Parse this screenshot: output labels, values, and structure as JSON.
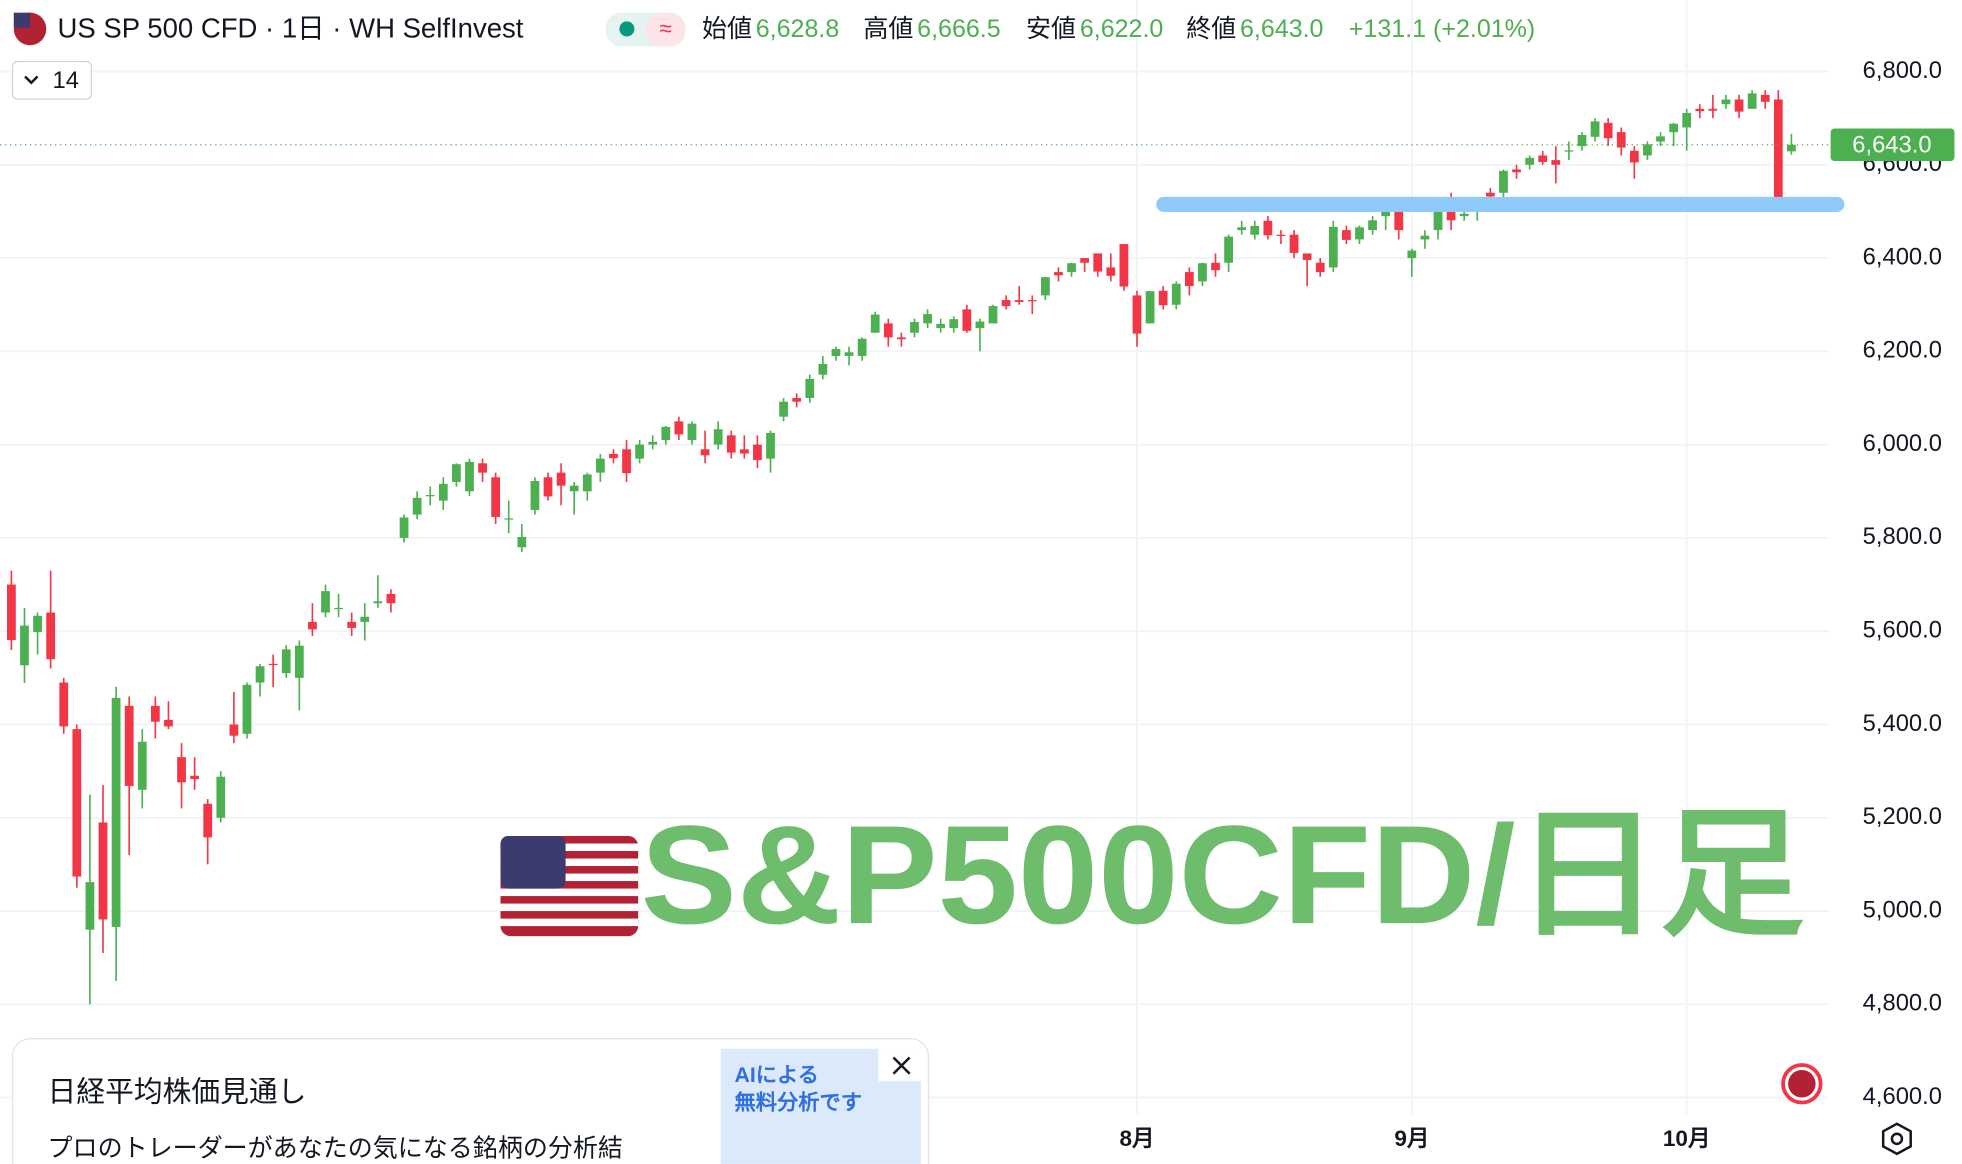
{
  "header": {
    "title": "US SP 500 CFD · 1日 · WH SelfInvest",
    "interval_box": "14",
    "open_label": "始値",
    "open": "6,628.8",
    "high_label": "高値",
    "high": "6,666.5",
    "low_label": "安値",
    "low": "6,622.0",
    "close_label": "終値",
    "close": "6,643.0",
    "change": "+131.1 (+2.01%)"
  },
  "overlay_title": "S&P500CFD/日足",
  "ad": {
    "title": "日経平均株価見通し",
    "text": "プロのトレーダーがあなたの気になる銘柄の分析結",
    "image_lines": [
      "AIによる",
      "無料分析です"
    ]
  },
  "chart_data": {
    "type": "candlestick",
    "up_color": "#4caf50",
    "down_color": "#f23645",
    "grid": true,
    "ylim": [
      4458,
      6953
    ],
    "yticks": [
      {
        "value": 4600,
        "label": "4,600.0"
      },
      {
        "value": 4800,
        "label": "4,800.0"
      },
      {
        "value": 5000,
        "label": "5,000.0"
      },
      {
        "value": 5200,
        "label": "5,200.0"
      },
      {
        "value": 5400,
        "label": "5,400.0"
      },
      {
        "value": 5600,
        "label": "5,600.0"
      },
      {
        "value": 5800,
        "label": "5,800.0"
      },
      {
        "value": 6000,
        "label": "6,000.0"
      },
      {
        "value": 6200,
        "label": "6,200.0"
      },
      {
        "value": 6400,
        "label": "6,400.0"
      },
      {
        "value": 6600,
        "label": "6,600.0"
      },
      {
        "value": 6800,
        "label": "6,800.0"
      }
    ],
    "last_price_label": "6,643.0",
    "annotation_line": {
      "value": 6515,
      "color": "#90caf9"
    },
    "categories": [
      null,
      null,
      null,
      null,
      null,
      null,
      null,
      null,
      null,
      null,
      null,
      null,
      null,
      null,
      null,
      null,
      null,
      null,
      null,
      null,
      null,
      null,
      null,
      null,
      null,
      null,
      null,
      null,
      null,
      null,
      null,
      null,
      null,
      null,
      null,
      null,
      null,
      null,
      null,
      null,
      null,
      null,
      null,
      null,
      null,
      null,
      null,
      null,
      null,
      null,
      null,
      null,
      null,
      null,
      null,
      null,
      null,
      null,
      null,
      null,
      null,
      null,
      null,
      null,
      null,
      null,
      null,
      null,
      null,
      null,
      null,
      null,
      null,
      null,
      null,
      null,
      null,
      null,
      null,
      null,
      null,
      null,
      null,
      null,
      null,
      null,
      "8月",
      null,
      null,
      null,
      null,
      null,
      null,
      null,
      null,
      null,
      null,
      null,
      null,
      null,
      null,
      null,
      null,
      null,
      null,
      null,
      null,
      "9月",
      null,
      null,
      null,
      null,
      null,
      null,
      null,
      null,
      null,
      null,
      null,
      null,
      null,
      null,
      null,
      null,
      null,
      null,
      null,
      null,
      "10月",
      null,
      null,
      null,
      null,
      null,
      null,
      null,
      null
    ],
    "ohlc": [
      [
        5700,
        5730,
        5560,
        5581
      ],
      [
        5527,
        5650,
        5489,
        5612
      ],
      [
        5598,
        5640,
        5550,
        5633
      ],
      [
        5640,
        5730,
        5520,
        5540
      ],
      [
        5490,
        5500,
        5380,
        5396
      ],
      [
        5390,
        5400,
        5050,
        5074
      ],
      [
        4960,
        5250,
        4800,
        5062
      ],
      [
        5190,
        5270,
        4910,
        4982
      ],
      [
        4966,
        5481,
        4850,
        5457
      ],
      [
        5440,
        5460,
        5120,
        5268
      ],
      [
        5260,
        5390,
        5220,
        5363
      ],
      [
        5440,
        5460,
        5370,
        5406
      ],
      [
        5410,
        5450,
        5390,
        5396
      ],
      [
        5330,
        5360,
        5220,
        5276
      ],
      [
        5290,
        5330,
        5260,
        5283
      ],
      [
        5230,
        5240,
        5100,
        5158
      ],
      [
        5200,
        5300,
        5190,
        5288
      ],
      [
        5400,
        5470,
        5360,
        5376
      ],
      [
        5380,
        5490,
        5370,
        5485
      ],
      [
        5490,
        5530,
        5460,
        5525
      ],
      [
        5530,
        5550,
        5480,
        5528
      ],
      [
        5510,
        5570,
        5500,
        5561
      ],
      [
        5500,
        5580,
        5430,
        5569
      ],
      [
        5620,
        5660,
        5590,
        5604
      ],
      [
        5640,
        5700,
        5630,
        5686
      ],
      [
        5650,
        5680,
        5630,
        5650
      ],
      [
        5620,
        5640,
        5590,
        5607
      ],
      [
        5620,
        5660,
        5580,
        5631
      ],
      [
        5660,
        5720,
        5650,
        5664
      ],
      [
        5680,
        5690,
        5640,
        5660
      ],
      [
        5800,
        5850,
        5790,
        5844
      ],
      [
        5850,
        5900,
        5840,
        5886
      ],
      [
        5890,
        5910,
        5870,
        5892
      ],
      [
        5880,
        5930,
        5860,
        5916
      ],
      [
        5920,
        5960,
        5910,
        5958
      ],
      [
        5900,
        5970,
        5890,
        5963
      ],
      [
        5960,
        5970,
        5920,
        5940
      ],
      [
        5930,
        5940,
        5830,
        5845
      ],
      [
        5840,
        5880,
        5810,
        5842
      ],
      [
        5780,
        5830,
        5770,
        5802
      ],
      [
        5860,
        5930,
        5850,
        5922
      ],
      [
        5930,
        5940,
        5880,
        5889
      ],
      [
        5940,
        5960,
        5870,
        5912
      ],
      [
        5900,
        5920,
        5850,
        5912
      ],
      [
        5900,
        5940,
        5880,
        5936
      ],
      [
        5940,
        5980,
        5920,
        5970
      ],
      [
        5980,
        5990,
        5960,
        5971
      ],
      [
        5990,
        6010,
        5920,
        5939
      ],
      [
        5970,
        6010,
        5960,
        6000
      ],
      [
        6000,
        6020,
        5990,
        6006
      ],
      [
        6010,
        6040,
        6000,
        6038
      ],
      [
        6050,
        6060,
        6010,
        6022
      ],
      [
        6010,
        6050,
        6000,
        6045
      ],
      [
        5990,
        6030,
        5960,
        5977
      ],
      [
        6000,
        6050,
        5990,
        6033
      ],
      [
        6020,
        6030,
        5970,
        5983
      ],
      [
        5990,
        6020,
        5970,
        5981
      ],
      [
        6000,
        6020,
        5950,
        5967
      ],
      [
        5970,
        6030,
        5940,
        6025
      ],
      [
        6060,
        6100,
        6050,
        6092
      ],
      [
        6100,
        6110,
        6080,
        6092
      ],
      [
        6100,
        6150,
        6090,
        6141
      ],
      [
        6150,
        6190,
        6140,
        6173
      ],
      [
        6190,
        6210,
        6180,
        6205
      ],
      [
        6190,
        6210,
        6170,
        6198
      ],
      [
        6190,
        6230,
        6180,
        6227
      ],
      [
        6240,
        6285,
        6240,
        6279
      ],
      [
        6260,
        6270,
        6210,
        6230
      ],
      [
        6230,
        6240,
        6210,
        6226
      ],
      [
        6240,
        6270,
        6230,
        6263
      ],
      [
        6260,
        6290,
        6250,
        6280
      ],
      [
        6250,
        6270,
        6240,
        6259
      ],
      [
        6250,
        6275,
        6240,
        6269
      ],
      [
        6290,
        6300,
        6240,
        6244
      ],
      [
        6250,
        6270,
        6200,
        6264
      ],
      [
        6260,
        6300,
        6260,
        6297
      ],
      [
        6310,
        6320,
        6290,
        6297
      ],
      [
        6310,
        6340,
        6300,
        6306
      ],
      [
        6310,
        6320,
        6280,
        6309
      ],
      [
        6320,
        6360,
        6310,
        6359
      ],
      [
        6370,
        6380,
        6350,
        6363
      ],
      [
        6370,
        6390,
        6360,
        6389
      ],
      [
        6400,
        6400,
        6370,
        6390
      ],
      [
        6410,
        6410,
        6360,
        6371
      ],
      [
        6380,
        6410,
        6350,
        6362
      ],
      [
        6430,
        6430,
        6330,
        6339
      ],
      [
        6320,
        6330,
        6210,
        6238
      ],
      [
        6260,
        6330,
        6260,
        6329
      ],
      [
        6330,
        6340,
        6290,
        6299
      ],
      [
        6300,
        6350,
        6290,
        6345
      ],
      [
        6370,
        6380,
        6320,
        6340
      ],
      [
        6350,
        6390,
        6340,
        6389
      ],
      [
        6390,
        6410,
        6360,
        6374
      ],
      [
        6390,
        6450,
        6370,
        6446
      ],
      [
        6460,
        6480,
        6450,
        6466
      ],
      [
        6450,
        6480,
        6440,
        6469
      ],
      [
        6480,
        6490,
        6440,
        6449
      ],
      [
        6450,
        6460,
        6430,
        6449
      ],
      [
        6450,
        6460,
        6400,
        6411
      ],
      [
        6410,
        6410,
        6340,
        6396
      ],
      [
        6390,
        6400,
        6360,
        6370
      ],
      [
        6380,
        6480,
        6370,
        6467
      ],
      [
        6460,
        6470,
        6430,
        6439
      ],
      [
        6440,
        6470,
        6430,
        6466
      ],
      [
        6460,
        6490,
        6450,
        6481
      ],
      [
        6490,
        6510,
        6460,
        6502
      ],
      [
        6500,
        6500,
        6440,
        6460
      ],
      [
        6400,
        6420,
        6360,
        6416
      ],
      [
        6440,
        6460,
        6420,
        6448
      ],
      [
        6460,
        6510,
        6440,
        6502
      ],
      [
        6530,
        6540,
        6460,
        6481
      ],
      [
        6490,
        6510,
        6480,
        6495
      ],
      [
        6500,
        6520,
        6480,
        6512
      ],
      [
        6540,
        6550,
        6510,
        6532
      ],
      [
        6540,
        6590,
        6530,
        6587
      ],
      [
        6590,
        6600,
        6570,
        6584
      ],
      [
        6600,
        6620,
        6590,
        6615
      ],
      [
        6620,
        6630,
        6600,
        6606
      ],
      [
        6610,
        6640,
        6560,
        6600
      ],
      [
        6630,
        6650,
        6610,
        6631
      ],
      [
        6640,
        6670,
        6630,
        6664
      ],
      [
        6660,
        6700,
        6650,
        6693
      ],
      [
        6690,
        6700,
        6640,
        6657
      ],
      [
        6670,
        6680,
        6620,
        6637
      ],
      [
        6630,
        6640,
        6570,
        6605
      ],
      [
        6620,
        6650,
        6610,
        6644
      ],
      [
        6650,
        6670,
        6640,
        6661
      ],
      [
        6670,
        6690,
        6640,
        6688
      ],
      [
        6680,
        6720,
        6630,
        6711
      ],
      [
        6720,
        6730,
        6700,
        6715
      ],
      [
        6720,
        6750,
        6700,
        6716
      ],
      [
        6730,
        6750,
        6720,
        6740
      ],
      [
        6740,
        6750,
        6700,
        6714
      ],
      [
        6720,
        6760,
        6720,
        6753
      ],
      [
        6750,
        6760,
        6720,
        6735
      ],
      [
        6740,
        6760,
        6500,
        6511.9
      ],
      [
        6628.8,
        6666.5,
        6622,
        6643
      ]
    ]
  }
}
